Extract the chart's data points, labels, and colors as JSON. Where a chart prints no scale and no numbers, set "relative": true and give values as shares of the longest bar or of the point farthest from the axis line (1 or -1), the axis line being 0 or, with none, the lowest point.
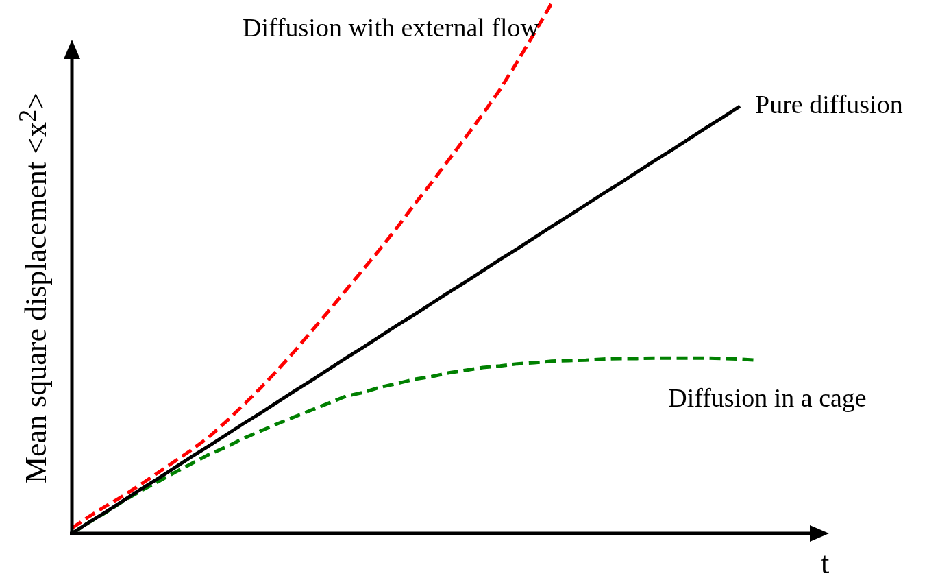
{
  "chart_data": {
    "type": "line",
    "relative": true,
    "tick_labels": false,
    "xlabel": "t",
    "ylabel": "Mean square displacement <x$^{2}$>",
    "categories": [
      null,
      null,
      null,
      null,
      null,
      null,
      null,
      null,
      null,
      null,
      null,
      null,
      null,
      null,
      null,
      null,
      null,
      null,
      null,
      null,
      null,
      null,
      null,
      null,
      null,
      null,
      null,
      null,
      null,
      null,
      null,
      null,
      null,
      null,
      null,
      null,
      null,
      null,
      null,
      null,
      null,
      null,
      null,
      null,
      null
    ],
    "series": [
      {
        "name": "Diffusion with external flow",
        "color": "#ff0000",
        "line_style": "dashed",
        "values": [
          0.01,
          0.032,
          0.052,
          0.071,
          0.092,
          0.114,
          0.136,
          0.158,
          0.182,
          0.211,
          0.242,
          0.274,
          0.308,
          0.344,
          0.382,
          0.42,
          0.459,
          0.498,
          0.537,
          0.578,
          0.621,
          0.662,
          0.705,
          0.748,
          0.792,
          0.838,
          0.89,
          0.944,
          1.0,
          null,
          null,
          null,
          null,
          null,
          null,
          null,
          null,
          null,
          null,
          null,
          null,
          null,
          null,
          null,
          null
        ]
      },
      {
        "name": "Pure diffusion",
        "color": "#000000",
        "line_style": "solid",
        "values": [
          0,
          0.021,
          0.041,
          0.062,
          0.083,
          0.103,
          0.124,
          0.145,
          0.165,
          0.186,
          0.207,
          0.227,
          0.248,
          0.269,
          0.289,
          0.31,
          0.331,
          0.351,
          0.372,
          0.393,
          0.413,
          0.434,
          0.455,
          0.475,
          0.496,
          0.517,
          0.537,
          0.558,
          0.579,
          0.599,
          0.62,
          0.641,
          0.661,
          0.682,
          0.703,
          0.723,
          0.744,
          0.765,
          0.785,
          0.806,
          null,
          null,
          null,
          null,
          null
        ]
      },
      {
        "name": "Diffusion in a cage",
        "color": "#008000",
        "line_style": "dashed",
        "values": [
          0,
          0.021,
          0.04,
          0.061,
          0.08,
          0.097,
          0.115,
          0.132,
          0.149,
          0.163,
          0.179,
          0.193,
          0.207,
          0.22,
          0.233,
          0.246,
          0.259,
          0.266,
          0.276,
          0.283,
          0.291,
          0.296,
          0.303,
          0.308,
          0.313,
          0.316,
          0.32,
          0.322,
          0.325,
          0.326,
          0.327,
          0.329,
          0.33,
          0.33,
          0.331,
          0.331,
          0.331,
          0.331,
          0.33,
          0.329,
          0.327,
          null,
          null,
          null,
          null
        ]
      }
    ]
  }
}
